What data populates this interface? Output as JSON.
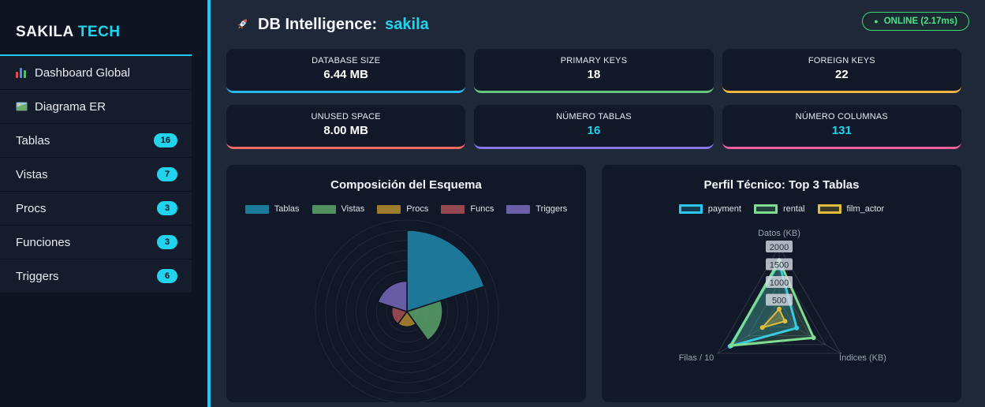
{
  "accent": "#1fc8f0",
  "sidebar": {
    "logo": {
      "primary": "SAKILA",
      "secondary": "TECH"
    },
    "items": [
      {
        "icon": "bar-chart-icon",
        "label": "Dashboard Global",
        "badge": null
      },
      {
        "icon": "picture-icon",
        "label": "Diagrama ER",
        "badge": null
      },
      {
        "icon": null,
        "label": "Tablas",
        "badge": "16"
      },
      {
        "icon": null,
        "label": "Vistas",
        "badge": "7"
      },
      {
        "icon": null,
        "label": "Procs",
        "badge": "3"
      },
      {
        "icon": null,
        "label": "Funciones",
        "badge": "3"
      },
      {
        "icon": null,
        "label": "Triggers",
        "badge": "6"
      }
    ]
  },
  "header": {
    "icon": "rocket-icon",
    "title": "DB Intelligence:",
    "db_name": "sakila",
    "status": {
      "dot": "●",
      "label": "ONLINE (2.17ms)",
      "color": "#4be18a"
    }
  },
  "stats": [
    {
      "label": "DATABASE SIZE",
      "value": "6.44 MB",
      "accent": "#29b6f0",
      "value_color": "#ffffff"
    },
    {
      "label": "PRIMARY KEYS",
      "value": "18",
      "accent": "#68c77c",
      "value_color": "#ffffff"
    },
    {
      "label": "FOREIGN KEYS",
      "value": "22",
      "accent": "#f0b442",
      "value_color": "#ffffff"
    },
    {
      "label": "UNUSED SPACE",
      "value": "8.00 MB",
      "accent": "#ef6a61",
      "value_color": "#ffffff"
    },
    {
      "label": "NÚMERO TABLAS",
      "value": "16",
      "accent": "#8677e8",
      "value_color": "#22d3ee"
    },
    {
      "label": "NÚMERO COLUMNAS",
      "value": "131",
      "accent": "#ec5f9d",
      "value_color": "#22d3ee"
    }
  ],
  "chart_data": [
    {
      "type": "polarArea",
      "title": "Composición del Esquema",
      "categories": [
        "Tablas",
        "Vistas",
        "Procs",
        "Funcs",
        "Triggers"
      ],
      "values": [
        16,
        7,
        3,
        3,
        6
      ],
      "colors": [
        "#1e88ab",
        "#5aa268",
        "#b18a2f",
        "#a84f55",
        "#7769bb"
      ],
      "rlim": [
        0,
        18
      ],
      "tick_step": 2,
      "grid": true,
      "legend_position": "top"
    },
    {
      "type": "radar",
      "title": "Perfil Técnico: Top 3 Tablas",
      "axes": [
        "Datos (KB)",
        "Índices (KB)",
        "Filas / 10"
      ],
      "series": [
        {
          "name": "payment",
          "color": "#2bc7f0",
          "values": [
            1550,
            570,
            1600
          ]
        },
        {
          "name": "rental",
          "color": "#7edd90",
          "values": [
            1620,
            1120,
            1560
          ]
        },
        {
          "name": "film_actor",
          "color": "#e2bd3a",
          "values": [
            250,
            190,
            546
          ]
        }
      ],
      "rlim": [
        0,
        2000
      ],
      "ticks": [
        500,
        1000,
        1500,
        2000
      ],
      "grid": true,
      "legend_position": "top"
    }
  ]
}
